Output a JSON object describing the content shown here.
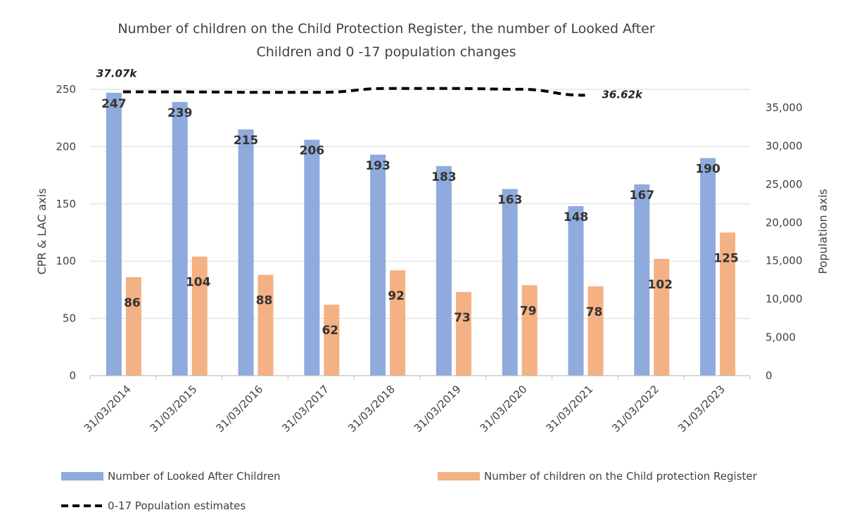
{
  "chart_data": {
    "type": "bar",
    "title_line1": "Number of children on the Child Protection Register, the number of Looked After",
    "title_line2": "Children and 0 -17 population changes",
    "categories": [
      "31/03/2014",
      "31/03/2015",
      "31/03/2016",
      "31/03/2017",
      "31/03/2018",
      "31/03/2019",
      "31/03/2020",
      "31/03/2021",
      "31/03/2022",
      "31/03/2023"
    ],
    "series": [
      {
        "name": "Number of Looked After Children",
        "axis": "left",
        "color": "#8faadc",
        "values": [
          247,
          239,
          215,
          206,
          193,
          183,
          163,
          148,
          167,
          190
        ]
      },
      {
        "name": "Number of children on the Child protection Register",
        "axis": "left",
        "color": "#f4b183",
        "values": [
          86,
          104,
          88,
          62,
          92,
          73,
          79,
          78,
          102,
          125
        ]
      },
      {
        "name": "0-17 Population estimates",
        "axis": "right",
        "type": "line",
        "style": "dashed",
        "color": "#000000",
        "values": [
          37070,
          37050,
          37000,
          37000,
          37500,
          37500,
          37400,
          36620,
          null,
          null
        ]
      }
    ],
    "population_labels": {
      "first": "37.07k",
      "last": "36.62k"
    },
    "ylabel_left": "CPR & LAC axis",
    "ylabel_right": "Population axis",
    "ylim_left": [
      0,
      250
    ],
    "ylim_right": [
      0,
      35000
    ],
    "yticks_left": [
      "0",
      "50",
      "100",
      "150",
      "200",
      "250"
    ],
    "yticks_right": [
      "0",
      "5,000",
      "10,000",
      "15,000",
      "20,000",
      "25,000",
      "30,000",
      "35,000"
    ],
    "grid": true,
    "legend_position": "bottom"
  }
}
